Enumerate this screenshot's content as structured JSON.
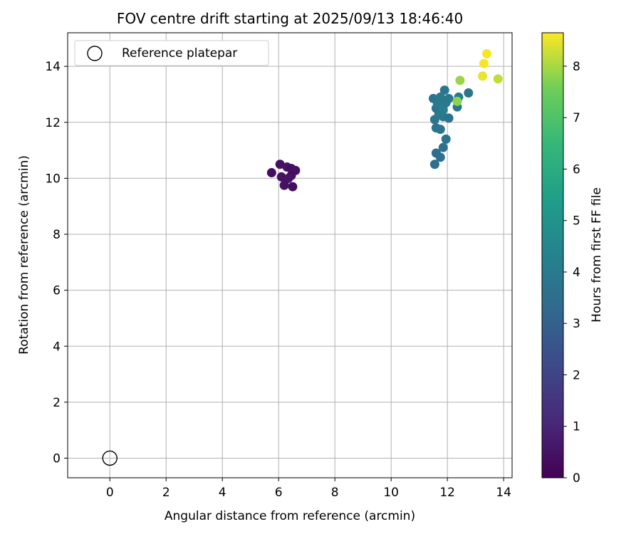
{
  "chart_data": {
    "type": "scatter",
    "title": "FOV centre drift starting at 2025/09/13 18:46:40",
    "xlabel": "Angular distance from reference (arcmin)",
    "ylabel": "Rotation from reference (arcmin)",
    "xlim": [
      -1.5,
      14.3
    ],
    "ylim": [
      -0.7,
      15.2
    ],
    "xticks": [
      0,
      2,
      4,
      6,
      8,
      10,
      12,
      14
    ],
    "yticks": [
      0,
      2,
      4,
      6,
      8,
      10,
      12,
      14
    ],
    "grid": true,
    "legend": {
      "placement": "top-left",
      "entries": [
        {
          "label": "Reference platepar",
          "marker": "open-circle"
        }
      ]
    },
    "reference_point": {
      "label": "Reference platepar",
      "x": 0,
      "y": 0
    },
    "colorbar": {
      "label": "Hours from first FF file",
      "min": 0,
      "max": 8.65,
      "ticks": [
        0,
        1,
        2,
        3,
        4,
        5,
        6,
        7,
        8
      ],
      "colormap": "viridis"
    },
    "points": [
      {
        "x": 5.75,
        "y": 10.2,
        "hours": 0.4
      },
      {
        "x": 6.05,
        "y": 10.5,
        "hours": 0.45
      },
      {
        "x": 6.3,
        "y": 10.4,
        "hours": 0.5
      },
      {
        "x": 6.45,
        "y": 10.35,
        "hours": 0.4
      },
      {
        "x": 6.6,
        "y": 10.28,
        "hours": 0.45
      },
      {
        "x": 6.1,
        "y": 10.05,
        "hours": 0.5
      },
      {
        "x": 6.25,
        "y": 9.95,
        "hours": 0.45
      },
      {
        "x": 6.45,
        "y": 10.1,
        "hours": 0.4
      },
      {
        "x": 6.35,
        "y": 10.0,
        "hours": 0.5
      },
      {
        "x": 6.2,
        "y": 9.75,
        "hours": 0.45
      },
      {
        "x": 6.5,
        "y": 9.7,
        "hours": 0.4
      },
      {
        "x": 11.55,
        "y": 10.5,
        "hours": 3.5
      },
      {
        "x": 11.6,
        "y": 10.9,
        "hours": 3.5
      },
      {
        "x": 11.75,
        "y": 10.75,
        "hours": 3.6
      },
      {
        "x": 11.85,
        "y": 11.1,
        "hours": 3.6
      },
      {
        "x": 11.95,
        "y": 11.4,
        "hours": 3.7
      },
      {
        "x": 11.6,
        "y": 11.8,
        "hours": 3.7
      },
      {
        "x": 11.75,
        "y": 11.75,
        "hours": 3.8
      },
      {
        "x": 11.55,
        "y": 12.1,
        "hours": 3.8
      },
      {
        "x": 11.7,
        "y": 12.3,
        "hours": 3.9
      },
      {
        "x": 11.85,
        "y": 12.2,
        "hours": 3.9
      },
      {
        "x": 12.05,
        "y": 12.15,
        "hours": 3.7
      },
      {
        "x": 11.6,
        "y": 12.5,
        "hours": 3.8
      },
      {
        "x": 11.8,
        "y": 12.6,
        "hours": 3.9
      },
      {
        "x": 11.95,
        "y": 12.7,
        "hours": 4.0
      },
      {
        "x": 11.5,
        "y": 12.85,
        "hours": 3.8
      },
      {
        "x": 11.75,
        "y": 12.9,
        "hours": 3.9
      },
      {
        "x": 11.9,
        "y": 13.15,
        "hours": 3.8
      },
      {
        "x": 12.05,
        "y": 12.85,
        "hours": 3.9
      },
      {
        "x": 11.65,
        "y": 12.65,
        "hours": 4.0
      },
      {
        "x": 11.85,
        "y": 12.45,
        "hours": 4.1
      },
      {
        "x": 12.35,
        "y": 12.55,
        "hours": 3.9
      },
      {
        "x": 12.4,
        "y": 12.9,
        "hours": 4.0
      },
      {
        "x": 12.75,
        "y": 13.05,
        "hours": 3.8
      },
      {
        "x": 12.35,
        "y": 12.75,
        "hours": 7.8
      },
      {
        "x": 12.45,
        "y": 13.5,
        "hours": 7.9
      },
      {
        "x": 13.25,
        "y": 13.65,
        "hours": 8.5
      },
      {
        "x": 13.3,
        "y": 14.1,
        "hours": 8.6
      },
      {
        "x": 13.4,
        "y": 14.45,
        "hours": 8.6
      },
      {
        "x": 13.8,
        "y": 13.55,
        "hours": 8.2
      }
    ]
  }
}
